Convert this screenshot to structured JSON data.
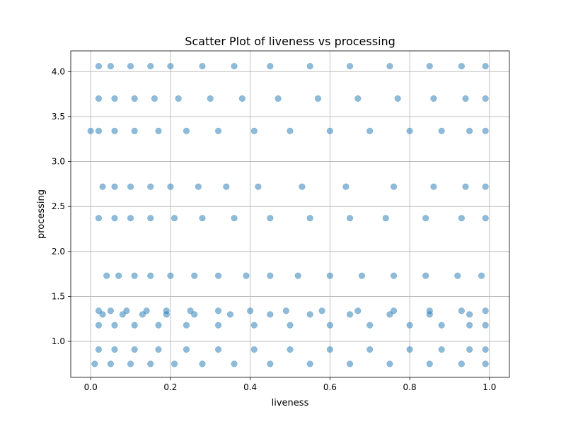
{
  "chart_data": {
    "type": "scatter",
    "title": "Scatter Plot of liveness vs processing",
    "xlabel": "liveness",
    "ylabel": "processing",
    "xlim": [
      -0.05,
      1.05
    ],
    "ylim": [
      0.6,
      4.23
    ],
    "xticks": [
      0.0,
      0.2,
      0.4,
      0.6,
      0.8,
      1.0
    ],
    "xtick_labels": [
      "0.0",
      "0.2",
      "0.4",
      "0.6",
      "0.8",
      "1.0"
    ],
    "yticks": [
      1.0,
      1.5,
      2.0,
      2.5,
      3.0,
      3.5,
      4.0
    ],
    "ytick_labels": [
      "1.0",
      "1.5",
      "2.0",
      "2.5",
      "3.0",
      "3.5",
      "4.0"
    ],
    "grid": true,
    "marker_color": "#1f77b4",
    "marker_alpha": 0.5,
    "series": [
      {
        "points": [
          {
            "x": 0.0,
            "y": 3.34
          },
          {
            "x": 0.02,
            "y": 4.06
          },
          {
            "x": 0.05,
            "y": 4.06
          },
          {
            "x": 0.1,
            "y": 4.06
          },
          {
            "x": 0.15,
            "y": 4.06
          },
          {
            "x": 0.2,
            "y": 4.06
          },
          {
            "x": 0.28,
            "y": 4.06
          },
          {
            "x": 0.36,
            "y": 4.06
          },
          {
            "x": 0.45,
            "y": 4.06
          },
          {
            "x": 0.55,
            "y": 4.06
          },
          {
            "x": 0.65,
            "y": 4.06
          },
          {
            "x": 0.75,
            "y": 4.06
          },
          {
            "x": 0.85,
            "y": 4.06
          },
          {
            "x": 0.93,
            "y": 4.06
          },
          {
            "x": 0.99,
            "y": 4.06
          },
          {
            "x": 0.02,
            "y": 3.7
          },
          {
            "x": 0.06,
            "y": 3.7
          },
          {
            "x": 0.11,
            "y": 3.7
          },
          {
            "x": 0.16,
            "y": 3.7
          },
          {
            "x": 0.22,
            "y": 3.7
          },
          {
            "x": 0.3,
            "y": 3.7
          },
          {
            "x": 0.38,
            "y": 3.7
          },
          {
            "x": 0.47,
            "y": 3.7
          },
          {
            "x": 0.57,
            "y": 3.7
          },
          {
            "x": 0.67,
            "y": 3.7
          },
          {
            "x": 0.77,
            "y": 3.7
          },
          {
            "x": 0.86,
            "y": 3.7
          },
          {
            "x": 0.94,
            "y": 3.7
          },
          {
            "x": 0.99,
            "y": 3.7
          },
          {
            "x": 0.02,
            "y": 3.34
          },
          {
            "x": 0.06,
            "y": 3.34
          },
          {
            "x": 0.11,
            "y": 3.34
          },
          {
            "x": 0.17,
            "y": 3.34
          },
          {
            "x": 0.24,
            "y": 3.34
          },
          {
            "x": 0.32,
            "y": 3.34
          },
          {
            "x": 0.41,
            "y": 3.34
          },
          {
            "x": 0.5,
            "y": 3.34
          },
          {
            "x": 0.6,
            "y": 3.34
          },
          {
            "x": 0.7,
            "y": 3.34
          },
          {
            "x": 0.8,
            "y": 3.34
          },
          {
            "x": 0.88,
            "y": 3.34
          },
          {
            "x": 0.95,
            "y": 3.34
          },
          {
            "x": 0.99,
            "y": 3.34
          },
          {
            "x": 0.03,
            "y": 2.72
          },
          {
            "x": 0.06,
            "y": 2.72
          },
          {
            "x": 0.1,
            "y": 2.72
          },
          {
            "x": 0.15,
            "y": 2.72
          },
          {
            "x": 0.2,
            "y": 2.72
          },
          {
            "x": 0.27,
            "y": 2.72
          },
          {
            "x": 0.34,
            "y": 2.72
          },
          {
            "x": 0.42,
            "y": 2.72
          },
          {
            "x": 0.53,
            "y": 2.72
          },
          {
            "x": 0.64,
            "y": 2.72
          },
          {
            "x": 0.76,
            "y": 2.72
          },
          {
            "x": 0.86,
            "y": 2.72
          },
          {
            "x": 0.94,
            "y": 2.72
          },
          {
            "x": 0.99,
            "y": 2.72
          },
          {
            "x": 0.02,
            "y": 2.37
          },
          {
            "x": 0.06,
            "y": 2.37
          },
          {
            "x": 0.1,
            "y": 2.37
          },
          {
            "x": 0.15,
            "y": 2.37
          },
          {
            "x": 0.21,
            "y": 2.37
          },
          {
            "x": 0.28,
            "y": 2.37
          },
          {
            "x": 0.36,
            "y": 2.37
          },
          {
            "x": 0.45,
            "y": 2.37
          },
          {
            "x": 0.55,
            "y": 2.37
          },
          {
            "x": 0.65,
            "y": 2.37
          },
          {
            "x": 0.74,
            "y": 2.37
          },
          {
            "x": 0.84,
            "y": 2.37
          },
          {
            "x": 0.93,
            "y": 2.37
          },
          {
            "x": 0.99,
            "y": 2.37
          },
          {
            "x": 0.04,
            "y": 1.73
          },
          {
            "x": 0.07,
            "y": 1.73
          },
          {
            "x": 0.11,
            "y": 1.73
          },
          {
            "x": 0.15,
            "y": 1.73
          },
          {
            "x": 0.2,
            "y": 1.73
          },
          {
            "x": 0.26,
            "y": 1.73
          },
          {
            "x": 0.32,
            "y": 1.73
          },
          {
            "x": 0.39,
            "y": 1.73
          },
          {
            "x": 0.45,
            "y": 1.73
          },
          {
            "x": 0.52,
            "y": 1.73
          },
          {
            "x": 0.6,
            "y": 1.73
          },
          {
            "x": 0.68,
            "y": 1.73
          },
          {
            "x": 0.76,
            "y": 1.73
          },
          {
            "x": 0.84,
            "y": 1.73
          },
          {
            "x": 0.92,
            "y": 1.73
          },
          {
            "x": 0.98,
            "y": 1.73
          },
          {
            "x": 0.02,
            "y": 1.34
          },
          {
            "x": 0.05,
            "y": 1.34
          },
          {
            "x": 0.09,
            "y": 1.34
          },
          {
            "x": 0.14,
            "y": 1.34
          },
          {
            "x": 0.19,
            "y": 1.34
          },
          {
            "x": 0.25,
            "y": 1.34
          },
          {
            "x": 0.32,
            "y": 1.34
          },
          {
            "x": 0.4,
            "y": 1.34
          },
          {
            "x": 0.49,
            "y": 1.34
          },
          {
            "x": 0.58,
            "y": 1.34
          },
          {
            "x": 0.67,
            "y": 1.34
          },
          {
            "x": 0.76,
            "y": 1.34
          },
          {
            "x": 0.85,
            "y": 1.34
          },
          {
            "x": 0.93,
            "y": 1.34
          },
          {
            "x": 0.99,
            "y": 1.34
          },
          {
            "x": 0.03,
            "y": 1.3
          },
          {
            "x": 0.08,
            "y": 1.3
          },
          {
            "x": 0.13,
            "y": 1.3
          },
          {
            "x": 0.19,
            "y": 1.3
          },
          {
            "x": 0.26,
            "y": 1.3
          },
          {
            "x": 0.35,
            "y": 1.3
          },
          {
            "x": 0.45,
            "y": 1.3
          },
          {
            "x": 0.55,
            "y": 1.3
          },
          {
            "x": 0.65,
            "y": 1.3
          },
          {
            "x": 0.75,
            "y": 1.3
          },
          {
            "x": 0.85,
            "y": 1.3
          },
          {
            "x": 0.95,
            "y": 1.3
          },
          {
            "x": 0.02,
            "y": 1.18
          },
          {
            "x": 0.06,
            "y": 1.18
          },
          {
            "x": 0.11,
            "y": 1.18
          },
          {
            "x": 0.17,
            "y": 1.18
          },
          {
            "x": 0.24,
            "y": 1.18
          },
          {
            "x": 0.32,
            "y": 1.18
          },
          {
            "x": 0.41,
            "y": 1.18
          },
          {
            "x": 0.5,
            "y": 1.18
          },
          {
            "x": 0.6,
            "y": 1.18
          },
          {
            "x": 0.7,
            "y": 1.18
          },
          {
            "x": 0.8,
            "y": 1.18
          },
          {
            "x": 0.88,
            "y": 1.18
          },
          {
            "x": 0.95,
            "y": 1.18
          },
          {
            "x": 0.99,
            "y": 1.18
          },
          {
            "x": 0.02,
            "y": 0.91
          },
          {
            "x": 0.06,
            "y": 0.91
          },
          {
            "x": 0.11,
            "y": 0.91
          },
          {
            "x": 0.17,
            "y": 0.91
          },
          {
            "x": 0.24,
            "y": 0.91
          },
          {
            "x": 0.32,
            "y": 0.91
          },
          {
            "x": 0.41,
            "y": 0.91
          },
          {
            "x": 0.5,
            "y": 0.91
          },
          {
            "x": 0.6,
            "y": 0.91
          },
          {
            "x": 0.7,
            "y": 0.91
          },
          {
            "x": 0.8,
            "y": 0.91
          },
          {
            "x": 0.88,
            "y": 0.91
          },
          {
            "x": 0.95,
            "y": 0.91
          },
          {
            "x": 0.99,
            "y": 0.91
          },
          {
            "x": 0.01,
            "y": 0.75
          },
          {
            "x": 0.05,
            "y": 0.75
          },
          {
            "x": 0.1,
            "y": 0.75
          },
          {
            "x": 0.15,
            "y": 0.75
          },
          {
            "x": 0.21,
            "y": 0.75
          },
          {
            "x": 0.28,
            "y": 0.75
          },
          {
            "x": 0.36,
            "y": 0.75
          },
          {
            "x": 0.45,
            "y": 0.75
          },
          {
            "x": 0.55,
            "y": 0.75
          },
          {
            "x": 0.65,
            "y": 0.75
          },
          {
            "x": 0.75,
            "y": 0.75
          },
          {
            "x": 0.85,
            "y": 0.75
          },
          {
            "x": 0.93,
            "y": 0.75
          },
          {
            "x": 0.99,
            "y": 0.75
          }
        ]
      }
    ]
  }
}
